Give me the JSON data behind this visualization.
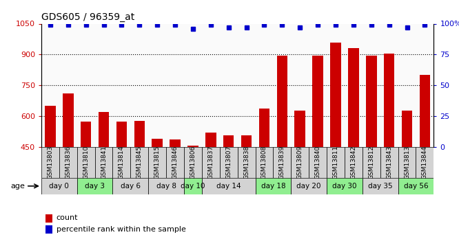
{
  "title": "GDS605 / 96359_at",
  "samples": [
    "GSM13803",
    "GSM13836",
    "GSM13810",
    "GSM13841",
    "GSM13814",
    "GSM13845",
    "GSM13815",
    "GSM13846",
    "GSM13806",
    "GSM13837",
    "GSM13807",
    "GSM13838",
    "GSM13808",
    "GSM13839",
    "GSM13809",
    "GSM13840",
    "GSM13811",
    "GSM13842",
    "GSM13812",
    "GSM13843",
    "GSM13813",
    "GSM13844"
  ],
  "counts": [
    650,
    710,
    575,
    620,
    573,
    578,
    490,
    488,
    458,
    520,
    508,
    505,
    637,
    895,
    628,
    893,
    958,
    930,
    895,
    905,
    628,
    800
  ],
  "percentile_ranks": [
    99,
    99,
    99,
    99,
    99,
    99,
    99,
    99,
    96,
    99,
    97,
    97,
    99,
    99,
    97,
    99,
    99,
    99,
    99,
    99,
    97,
    99
  ],
  "day_groups": [
    {
      "label": "day 0",
      "members": [
        "GSM13803",
        "GSM13836"
      ],
      "color": "#d3d3d3"
    },
    {
      "label": "day 3",
      "members": [
        "GSM13810",
        "GSM13841"
      ],
      "color": "#90ee90"
    },
    {
      "label": "day 6",
      "members": [
        "GSM13814",
        "GSM13845"
      ],
      "color": "#d3d3d3"
    },
    {
      "label": "day 8",
      "members": [
        "GSM13815",
        "GSM13846"
      ],
      "color": "#d3d3d3"
    },
    {
      "label": "day 10",
      "members": [
        "GSM13806"
      ],
      "color": "#90ee90"
    },
    {
      "label": "day 14",
      "members": [
        "GSM13837",
        "GSM13807",
        "GSM13838"
      ],
      "color": "#d3d3d3"
    },
    {
      "label": "day 18",
      "members": [
        "GSM13808",
        "GSM13839"
      ],
      "color": "#90ee90"
    },
    {
      "label": "day 20",
      "members": [
        "GSM13809",
        "GSM13840"
      ],
      "color": "#d3d3d3"
    },
    {
      "label": "day 30",
      "members": [
        "GSM13811",
        "GSM13842"
      ],
      "color": "#90ee90"
    },
    {
      "label": "day 35",
      "members": [
        "GSM13812",
        "GSM13843"
      ],
      "color": "#d3d3d3"
    },
    {
      "label": "day 56",
      "members": [
        "GSM13813",
        "GSM13844"
      ],
      "color": "#90ee90"
    }
  ],
  "ylim_left": [
    450,
    1050
  ],
  "ylim_right": [
    0,
    100
  ],
  "yticks_left": [
    450,
    600,
    750,
    900,
    1050
  ],
  "yticks_right": [
    0,
    25,
    50,
    75,
    100
  ],
  "grid_lines": [
    600,
    750,
    900
  ],
  "bar_color": "#cc0000",
  "dot_color": "#0000cc",
  "sample_bg": "#d3d3d3",
  "legend_count_color": "#cc0000",
  "legend_pct_color": "#0000cc"
}
